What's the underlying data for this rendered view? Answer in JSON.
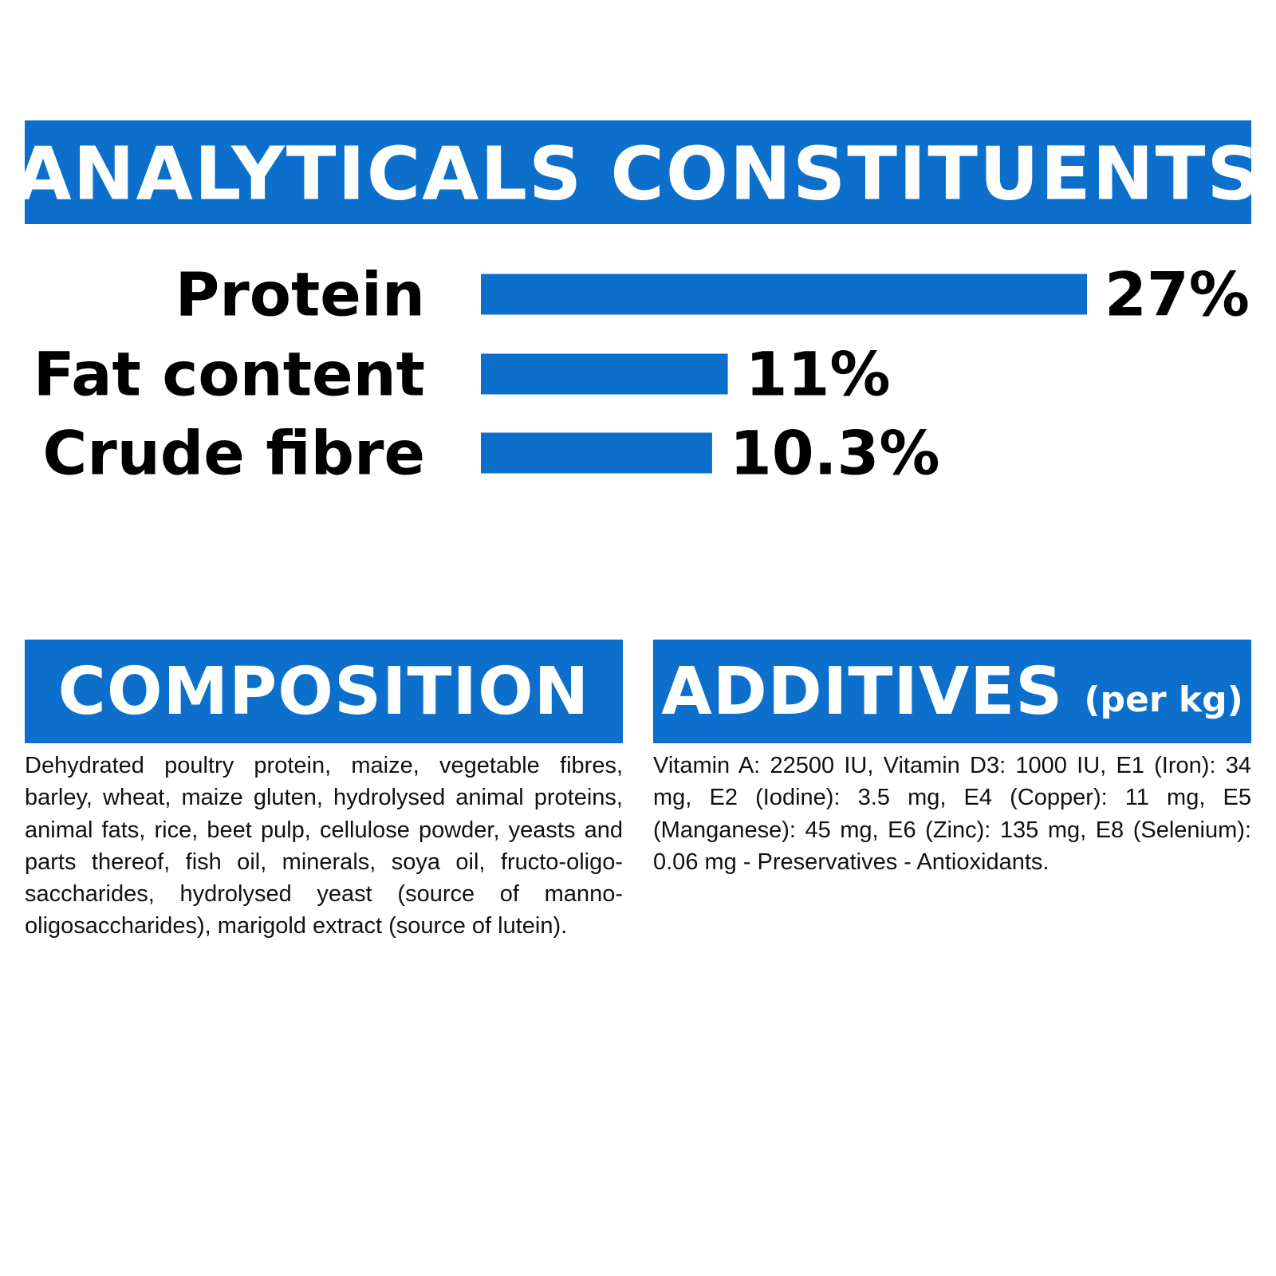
{
  "chart_data": {
    "type": "bar",
    "orientation": "horizontal",
    "title": "ANALYTICALS CONSTITUENTS",
    "categories": [
      "Protein",
      "Fat content",
      "Crude fibre"
    ],
    "values": [
      27,
      11,
      10.3
    ],
    "value_labels": [
      "27%",
      "11%",
      "10.3%"
    ],
    "color": "#0b6fcb"
  },
  "composition": {
    "title": "COMPOSITION",
    "text": "Dehydrated poultry protein, maize, vegetable fibres, barley, wheat, maize gluten, hydrolysed animal proteins, animal fats, rice, beet pulp, cellulose powder, yeasts and parts thereof, fish oil, minerals, soya oil, fructo-oligo-saccharides, hydrolysed yeast (source of manno-oligosaccharides), marigold extract (source of lutein)."
  },
  "additives": {
    "title": "ADDITIVES",
    "unit": "(per kg)",
    "text": "Vitamin A: 22500 IU, Vitamin D3: 1000 IU, E1 (Iron): 34 mg, E2 (Iodine): 3.5 mg, E4 (Copper): 11 mg, E5 (Manganese): 45 mg, E6 (Zinc): 135 mg, E8 (Selenium): 0.06 mg - Preservatives - Antioxidants."
  }
}
